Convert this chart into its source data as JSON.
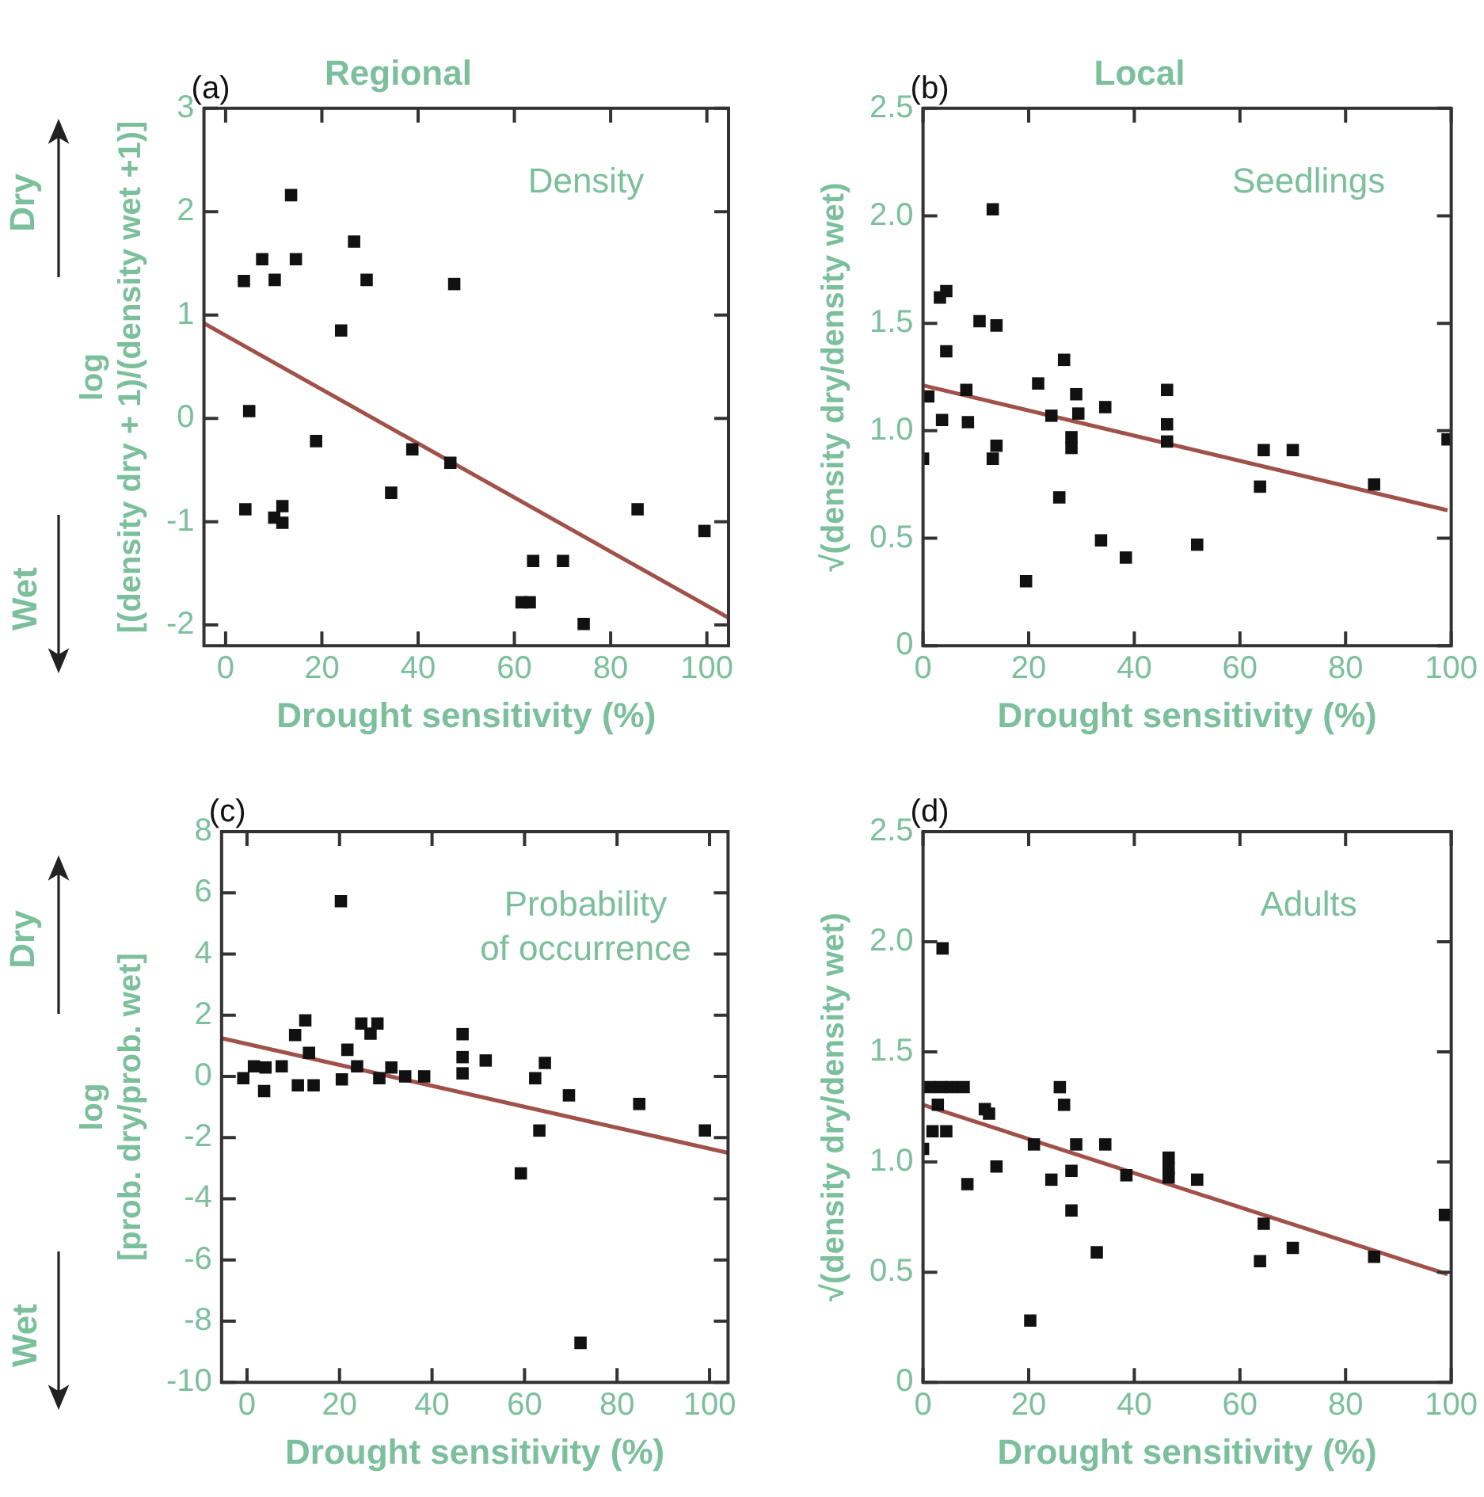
{
  "chart_data": [
    {
      "type": "scatter",
      "title": "Regional",
      "xlabel": "Drought sensitivity (%)",
      "ylabel": "log\n[(density dry + 1)/(density wet +1)]",
      "xlim": [
        -4.5,
        104.5
      ],
      "ylim": [
        -2.2,
        3
      ],
      "xticks": [
        0,
        20,
        40,
        60,
        80,
        100
      ],
      "yticks": [
        -2,
        -1,
        0,
        1,
        2,
        3
      ],
      "annotations": [
        "(a)",
        "Density",
        "Dry",
        "Wet"
      ],
      "series": [
        {
          "type": "scatter",
          "marker": "square",
          "color": "#111111",
          "x": [
            3.8,
            7.6,
            10.2,
            14.6,
            13.6,
            26.7,
            29.3,
            47.5,
            24,
            4.9,
            18.8,
            38.8,
            46.7,
            34.4,
            4.1,
            11.8,
            10.1,
            11.8,
            85.6,
            99.5,
            63.9,
            70.1,
            61.5,
            63.2,
            74.4
          ],
          "values": [
            1.33,
            1.54,
            1.34,
            1.54,
            2.16,
            1.71,
            1.34,
            1.3,
            0.85,
            0.07,
            -0.22,
            -0.3,
            -0.43,
            -0.72,
            -0.88,
            -0.85,
            -0.96,
            -1.01,
            -0.88,
            -1.09,
            -1.38,
            -1.38,
            -1.78,
            -1.78,
            -1.99
          ]
        },
        {
          "type": "line",
          "marker": "none",
          "color": "#a0524a",
          "x": [
            -4.5,
            104.5
          ],
          "values": [
            0.92,
            -1.93
          ]
        }
      ]
    },
    {
      "type": "scatter",
      "title": "Local",
      "xlabel": "Drought sensitivity (%)",
      "ylabel": "√(density dry/density wet)",
      "xlim": [
        0,
        100
      ],
      "ylim": [
        0,
        2.5
      ],
      "xticks": [
        0,
        20,
        40,
        60,
        80,
        100
      ],
      "yticks": [
        0,
        {
          "value": 0.5,
          "label": "0.5"
        },
        {
          "value": 1,
          "label": "1.0"
        },
        {
          "value": 1.5,
          "label": "1.5"
        },
        {
          "value": 2,
          "label": "2.0"
        },
        {
          "value": 2.5,
          "label": "2.5"
        }
      ],
      "annotations": [
        "(b)",
        "Seedlings"
      ],
      "series": [
        {
          "type": "scatter",
          "marker": "square",
          "color": "#111111",
          "x": [
            0,
            1,
            3.2,
            4.4,
            4.4,
            3.6,
            8.2,
            8.5,
            10.7,
            13.9,
            13.2,
            13.9,
            13.2,
            19.5,
            21.8,
            24.3,
            26.7,
            25.8,
            29,
            29.4,
            28.1,
            28.1,
            34.5,
            33.7,
            38.4,
            46.2,
            46.2,
            46.2,
            51.9,
            64.5,
            70,
            63.8,
            85.4,
            99.3
          ],
          "values": [
            0.87,
            1.16,
            1.62,
            1.65,
            1.37,
            1.05,
            1.19,
            1.04,
            1.51,
            1.49,
            2.03,
            0.93,
            0.87,
            0.3,
            1.22,
            1.07,
            1.33,
            0.69,
            1.17,
            1.08,
            0.97,
            0.92,
            1.11,
            0.49,
            0.41,
            1.19,
            1.03,
            0.95,
            0.47,
            0.91,
            0.91,
            0.74,
            0.75,
            0.96
          ]
        },
        {
          "type": "line",
          "marker": "none",
          "color": "#a0524a",
          "x": [
            0.2,
            99.3
          ],
          "values": [
            1.21,
            0.63
          ]
        }
      ]
    },
    {
      "type": "scatter",
      "xlabel": "Drought sensitivity (%)",
      "ylabel": "log\n[prob. dry/prob. wet]",
      "xlim": [
        -5.5,
        104
      ],
      "ylim": [
        -10,
        8
      ],
      "xticks": [
        0,
        20,
        40,
        60,
        80,
        100
      ],
      "yticks": [
        -10,
        -8,
        -6,
        -4,
        -2,
        0,
        2,
        4,
        6,
        8
      ],
      "annotations": [
        "(c)",
        "Probability\nof occurrence",
        "Dry",
        "Wet"
      ],
      "series": [
        {
          "type": "scatter",
          "marker": "square",
          "color": "#111111",
          "x": [
            20.3,
            -0.8,
            1.5,
            3.7,
            4,
            7.5,
            10.4,
            12.6,
            13.4,
            11,
            14.4,
            20.5,
            21.7,
            23.8,
            24.7,
            26.7,
            28.2,
            28.6,
            31.2,
            34.2,
            38.3,
            46.6,
            46.6,
            46.6,
            51.6,
            62.3,
            64.4,
            63.2,
            69.6,
            59.2,
            84.8,
            99,
            72.1
          ],
          "values": [
            5.73,
            -0.06,
            0.33,
            -0.48,
            0.29,
            0.33,
            1.35,
            1.83,
            0.77,
            -0.29,
            -0.29,
            -0.1,
            0.87,
            0.33,
            1.73,
            1.4,
            1.73,
            -0.06,
            0.29,
            0,
            0,
            1.38,
            0.63,
            0.1,
            0.52,
            -0.06,
            0.44,
            -1.77,
            -0.62,
            -3.17,
            -0.9,
            -1.77,
            -8.71
          ]
        },
        {
          "type": "line",
          "marker": "none",
          "color": "#a0524a",
          "x": [
            -5.5,
            104
          ],
          "values": [
            1.25,
            -2.5
          ]
        }
      ]
    },
    {
      "type": "scatter",
      "xlabel": "Drought sensitivity (%)",
      "ylabel": "√(density dry/density wet)",
      "xlim": [
        0,
        100
      ],
      "ylim": [
        0,
        2.5
      ],
      "xticks": [
        0,
        20,
        40,
        60,
        80,
        100
      ],
      "yticks": [
        0,
        {
          "value": 0.5,
          "label": "0.5"
        },
        {
          "value": 1,
          "label": "1.0"
        },
        {
          "value": 1.5,
          "label": "1.5"
        },
        {
          "value": 2,
          "label": "2.0"
        },
        {
          "value": 2.5,
          "label": "2.5"
        }
      ],
      "annotations": [
        "(d)",
        "Adults"
      ],
      "series": [
        {
          "type": "scatter",
          "marker": "square",
          "color": "#111111",
          "x": [
            3.7,
            0,
            1.2,
            3.4,
            5.5,
            7.7,
            2.8,
            1.8,
            4.4,
            8.4,
            11.7,
            12.5,
            13.9,
            20.3,
            21,
            24.3,
            25.9,
            26.7,
            28.1,
            29,
            28.1,
            32.9,
            34.5,
            38.5,
            46.5,
            46.5,
            46.5,
            51.9,
            64.5,
            63.8,
            70,
            85.4,
            98.8
          ],
          "values": [
            1.97,
            1.06,
            1.34,
            1.34,
            1.34,
            1.34,
            1.26,
            1.14,
            1.14,
            0.9,
            1.24,
            1.22,
            0.98,
            0.28,
            1.08,
            0.92,
            1.34,
            1.26,
            0.96,
            1.08,
            0.78,
            0.59,
            1.08,
            0.94,
            1.02,
            0.97,
            0.93,
            0.92,
            0.72,
            0.55,
            0.61,
            0.57,
            0.76
          ]
        },
        {
          "type": "line",
          "marker": "none",
          "color": "#a0524a",
          "x": [
            0,
            99.3
          ],
          "values": [
            1.26,
            0.49
          ]
        }
      ]
    }
  ]
}
